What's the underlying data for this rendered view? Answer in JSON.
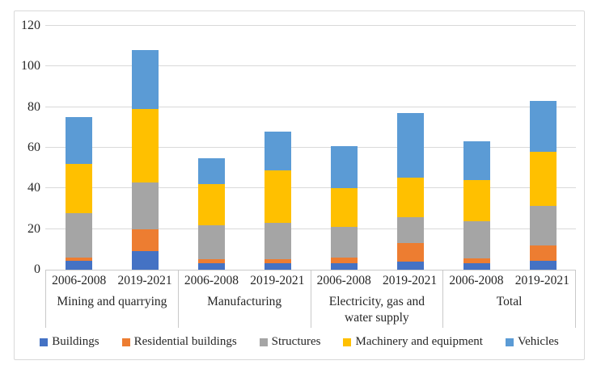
{
  "chart_data": {
    "type": "bar",
    "stacked": true,
    "title": "",
    "xlabel": "",
    "ylabel": "",
    "ylim": [
      0,
      120
    ],
    "yticks": [
      0,
      20,
      40,
      60,
      80,
      100,
      120
    ],
    "grid": true,
    "legend_position": "bottom",
    "series": [
      "Buildings",
      "Residential buildings",
      "Structures",
      "Machinery and equipment",
      "Vehicles"
    ],
    "colors": [
      "#4472C4",
      "#ED7D31",
      "#A5A5A5",
      "#FFC000",
      "#5B9BD5"
    ],
    "groups": [
      {
        "label": "Mining and quarrying",
        "bars": [
          {
            "label": "2006-2008",
            "values": [
              4.5,
              1.5,
              22,
              24,
              23
            ],
            "total": 75
          },
          {
            "label": "2019-2021",
            "values": [
              9,
              11,
              23,
              36,
              29
            ],
            "total": 108
          }
        ]
      },
      {
        "label": "Manufacturing",
        "bars": [
          {
            "label": "2006-2008",
            "values": [
              3,
              2,
              17,
              20,
              13
            ],
            "total": 55
          },
          {
            "label": "2019-2021",
            "values": [
              3,
              2,
              18,
              26,
              19
            ],
            "total": 68
          }
        ]
      },
      {
        "label": "Electricity, gas and water supply",
        "bars": [
          {
            "label": "2006-2008",
            "values": [
              3,
              3,
              15,
              19,
              21
            ],
            "total": 61
          },
          {
            "label": "2019-2021",
            "values": [
              4,
              9,
              13,
              19.5,
              31.5
            ],
            "total": 77
          }
        ]
      },
      {
        "label": "Total",
        "bars": [
          {
            "label": "2006-2008",
            "values": [
              3,
              2.5,
              18.5,
              20,
              19
            ],
            "total": 63
          },
          {
            "label": "2019-2021",
            "values": [
              4.5,
              7.5,
              19.5,
              26.5,
              25
            ],
            "total": 83
          }
        ]
      }
    ],
    "style": {
      "gridline_color": "#d9d9d9",
      "axis_color": "#c9c9c9",
      "text_color": "#262626",
      "figure_border_color": "#d9d9d9",
      "background": "#ffffff"
    }
  }
}
